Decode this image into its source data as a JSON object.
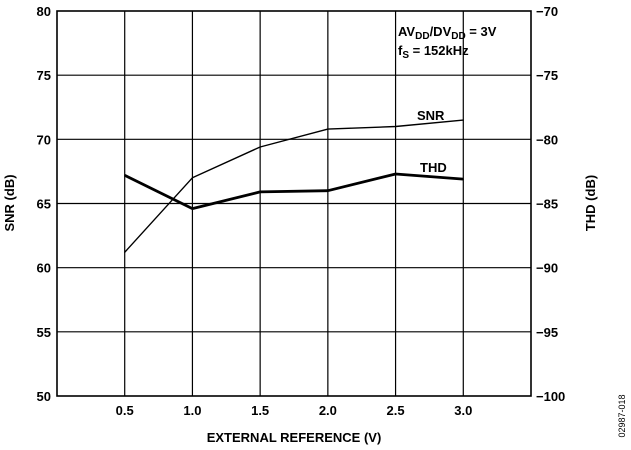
{
  "chart_data": {
    "type": "line",
    "xlabel": "EXTERNAL REFERENCE (V)",
    "ylabel": "SNR (dB)",
    "y2label": "THD (dB)",
    "x_ticks": [
      "0.5",
      "1.0",
      "1.5",
      "2.0",
      "2.5",
      "3.0"
    ],
    "y_ticks": [
      "80",
      "75",
      "70",
      "65",
      "60",
      "55",
      "50"
    ],
    "y2_ticks": [
      "−70",
      "−75",
      "−80",
      "−85",
      "−90",
      "−95",
      "−100"
    ],
    "xlim": [
      0,
      3.5
    ],
    "ylim": [
      50,
      80
    ],
    "y2lim": [
      -100,
      -70
    ],
    "grid": true,
    "annotation": {
      "line1": {
        "a": "AV",
        "a_sub": "DD",
        "b": "/DV",
        "b_sub": "DD",
        "c": " = 3V"
      },
      "line2": {
        "a": "f",
        "a_sub": "S",
        "b": " = 152kHz"
      }
    },
    "series": [
      {
        "name": "SNR",
        "axis": "left",
        "x": [
          0.5,
          1.0,
          1.5,
          2.0,
          2.5,
          3.0
        ],
        "values": [
          61.2,
          67.0,
          69.4,
          70.8,
          71.0,
          71.5
        ]
      },
      {
        "name": "THD",
        "axis": "right",
        "x": [
          0.5,
          1.0,
          1.5,
          2.0,
          2.5,
          3.0
        ],
        "values": [
          -82.8,
          -85.4,
          -84.1,
          -84.0,
          -82.7,
          -83.1
        ]
      }
    ]
  },
  "figure_id": "02987-018"
}
